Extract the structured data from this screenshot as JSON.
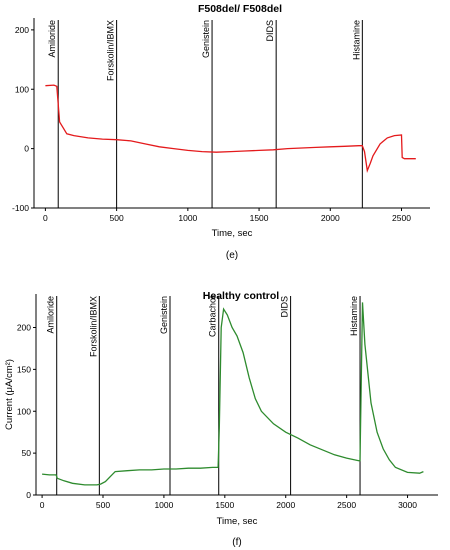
{
  "chart_data": [
    {
      "type": "line",
      "panel_label": "(e)",
      "title": "F508del/ F508del",
      "xlabel": "(e)",
      "xtick_labels": [
        "0",
        "500",
        "1000",
        "1500",
        "2000",
        "2500"
      ],
      "xaxis_title": "Time, sec",
      "ylabel": "",
      "ylim": [
        -100,
        220
      ],
      "xlim": [
        -80,
        2700
      ],
      "yticks": [
        -100,
        0,
        100,
        200
      ],
      "xticks": [
        0,
        500,
        1000,
        1500,
        2000,
        2500
      ],
      "series_color": "#e41a1c",
      "events": [
        {
          "label": "Amiloride",
          "x": 90
        },
        {
          "label": "Forskolin/IBMX",
          "x": 500
        },
        {
          "label": "Genistein",
          "x": 1170
        },
        {
          "label": "DIDS",
          "x": 1620
        },
        {
          "label": "Histamine",
          "x": 2225
        }
      ],
      "series": [
        {
          "x": [
            0,
            60,
            80,
            100,
            150,
            200,
            300,
            400,
            500,
            600,
            700,
            800,
            900,
            1000,
            1100,
            1200,
            1300,
            1400,
            1500,
            1600,
            1700,
            1800,
            1900,
            2000,
            2100,
            2200,
            2225,
            2240,
            2260,
            2280,
            2300,
            2350,
            2400,
            2450,
            2500,
            2505,
            2520,
            2600
          ],
          "y": [
            106,
            107,
            105,
            45,
            25,
            22,
            18,
            16,
            15,
            13,
            8,
            3,
            0,
            -3,
            -5,
            -6,
            -5,
            -4,
            -3,
            -2,
            0,
            1,
            2,
            3,
            4,
            5,
            5,
            -5,
            -37,
            -25,
            -12,
            8,
            18,
            22,
            23,
            -15,
            -17,
            -17
          ]
        }
      ]
    },
    {
      "type": "line",
      "panel_label": "(f)",
      "title": "Healthy control",
      "ylabel": "Current (μA/cm²)",
      "xaxis_title": "Time, sec",
      "ylim": [
        0,
        240
      ],
      "xlim": [
        -50,
        3250
      ],
      "yticks": [
        0,
        50,
        100,
        150,
        200
      ],
      "xticks": [
        0,
        500,
        1000,
        1500,
        2000,
        2500,
        3000
      ],
      "series_color": "#2e8b2e",
      "events": [
        {
          "label": "Amiloride",
          "x": 120
        },
        {
          "label": "Forskolin/IBMX",
          "x": 470
        },
        {
          "label": "Genistein",
          "x": 1050
        },
        {
          "label": "Carbachol",
          "x": 1450
        },
        {
          "label": "DIDS",
          "x": 2040
        },
        {
          "label": "Histamine",
          "x": 2610
        }
      ],
      "series": [
        {
          "x": [
            0,
            60,
            115,
            125,
            180,
            250,
            350,
            450,
            480,
            520,
            560,
            600,
            700,
            800,
            900,
            1000,
            1100,
            1200,
            1300,
            1400,
            1445,
            1455,
            1470,
            1490,
            1520,
            1560,
            1600,
            1650,
            1700,
            1750,
            1800,
            1900,
            2000,
            2100,
            2200,
            2300,
            2400,
            2500,
            2600,
            2610,
            2630,
            2650,
            2700,
            2750,
            2800,
            2850,
            2900,
            3000,
            3100,
            3130
          ],
          "y": [
            25,
            24,
            24,
            20,
            17,
            14,
            12,
            12,
            13,
            16,
            22,
            28,
            29,
            30,
            30,
            31,
            31,
            32,
            32,
            33,
            33,
            80,
            200,
            222,
            215,
            200,
            190,
            170,
            140,
            115,
            100,
            85,
            75,
            68,
            60,
            54,
            48,
            44,
            41,
            41,
            230,
            180,
            110,
            75,
            55,
            42,
            33,
            27,
            26,
            28
          ]
        }
      ]
    }
  ]
}
